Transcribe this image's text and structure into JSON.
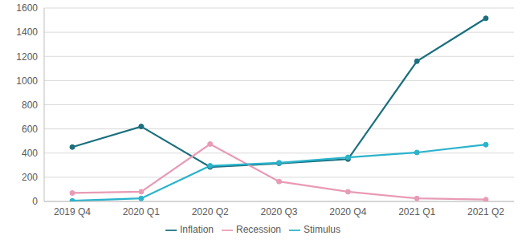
{
  "chart_data": {
    "type": "line",
    "categories": [
      "2019 Q4",
      "2020 Q1",
      "2020 Q2",
      "2020 Q3",
      "2020 Q4",
      "2021 Q1",
      "2021 Q2"
    ],
    "series": [
      {
        "name": "Inflation",
        "color": "#1b6f7f",
        "values": [
          450,
          620,
          285,
          315,
          350,
          1160,
          1515
        ]
      },
      {
        "name": "Recession",
        "color": "#e89bb4",
        "values": [
          70,
          80,
          475,
          165,
          80,
          25,
          15
        ]
      },
      {
        "name": "Stimulus",
        "color": "#2bb3cc",
        "values": [
          5,
          25,
          295,
          320,
          365,
          405,
          470
        ]
      }
    ],
    "ylim": [
      0,
      1600
    ],
    "yticks": [
      0,
      200,
      400,
      600,
      800,
      1000,
      1200,
      1400,
      1600
    ],
    "grid": true,
    "legend": "bottom",
    "marker": "circle"
  }
}
